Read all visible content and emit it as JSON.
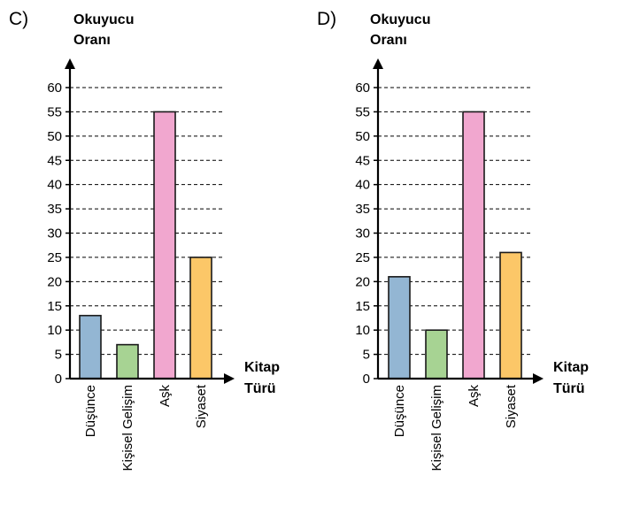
{
  "chart_data": [
    {
      "type": "bar",
      "option_label": "C)",
      "ylabel": [
        "Okuyucu",
        "Oranı"
      ],
      "xlabel": [
        "Kitap",
        "Türü"
      ],
      "categories": [
        "Düşünce",
        "Kişisel Gelişim",
        "Aşk",
        "Siyaset"
      ],
      "values": [
        13,
        7,
        55,
        25
      ],
      "colors": [
        "#93b6d3",
        "#a7d393",
        "#f1a7cf",
        "#fcc768"
      ],
      "yticks": [
        0,
        5,
        10,
        15,
        20,
        25,
        30,
        35,
        40,
        45,
        50,
        55,
        60
      ],
      "ylim": [
        0,
        60
      ],
      "grid": true
    },
    {
      "type": "bar",
      "option_label": "D)",
      "ylabel": [
        "Okuyucu",
        "Oranı"
      ],
      "xlabel": [
        "Kitap",
        "Türü"
      ],
      "categories": [
        "Düşünce",
        "Kişisel Gelişim",
        "Aşk",
        "Siyaset"
      ],
      "values": [
        21,
        10,
        55,
        26
      ],
      "colors": [
        "#93b6d3",
        "#a7d393",
        "#f1a7cf",
        "#fcc768"
      ],
      "yticks": [
        0,
        5,
        10,
        15,
        20,
        25,
        30,
        35,
        40,
        45,
        50,
        55,
        60
      ],
      "ylim": [
        0,
        60
      ],
      "grid": true
    }
  ]
}
